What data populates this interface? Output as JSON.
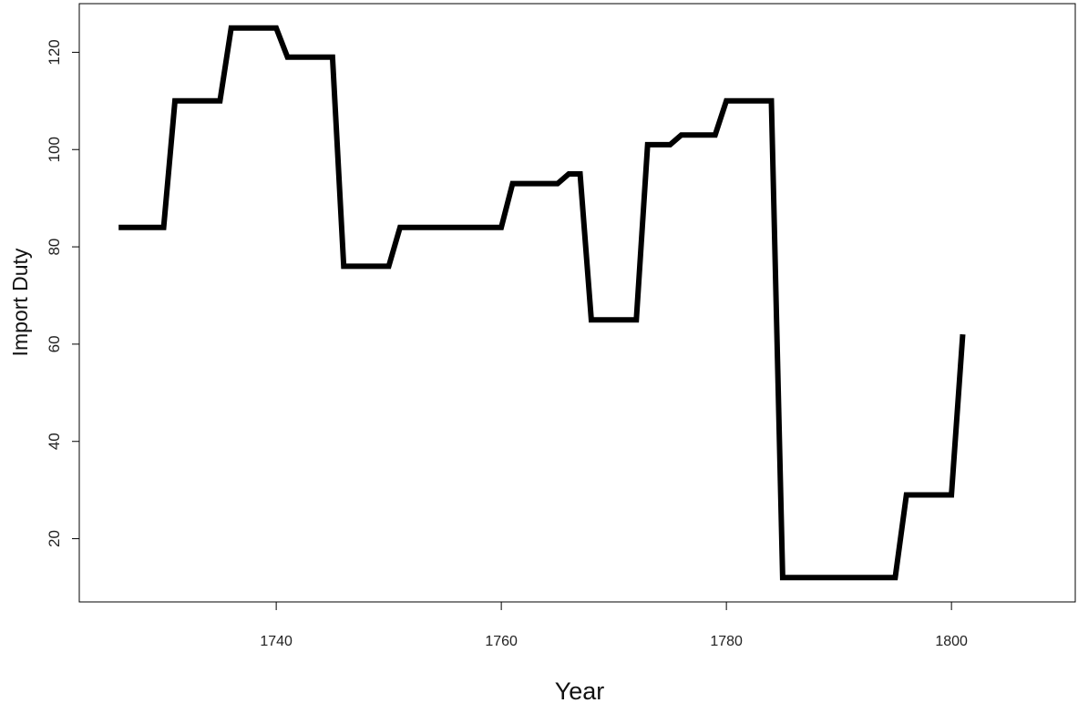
{
  "chart_data": {
    "type": "line",
    "xlabel": "Year",
    "ylabel": "Import Duty",
    "xlim": [
      1722.5,
      1811
    ],
    "ylim": [
      7,
      130
    ],
    "x_ticks": [
      1740,
      1760,
      1780,
      1800
    ],
    "y_ticks": [
      20,
      40,
      60,
      80,
      100,
      120
    ],
    "grid": false,
    "legend": "none",
    "line_color": "#000000",
    "series": [
      {
        "x": [
          1726,
          1730,
          1731,
          1735,
          1736,
          1740,
          1741,
          1745,
          1746,
          1750,
          1751,
          1755,
          1756,
          1760,
          1761,
          1765,
          1766,
          1767,
          1768,
          1772,
          1773,
          1775,
          1776,
          1779,
          1780,
          1784,
          1785,
          1795,
          1796,
          1800,
          1801
        ],
        "values": [
          84,
          84,
          110,
          110,
          125,
          125,
          119,
          119,
          76,
          76,
          84,
          84,
          84,
          84,
          93,
          93,
          95,
          95,
          65,
          65,
          101,
          101,
          103,
          103,
          110,
          110,
          12,
          12,
          29,
          29,
          62
        ]
      }
    ]
  }
}
